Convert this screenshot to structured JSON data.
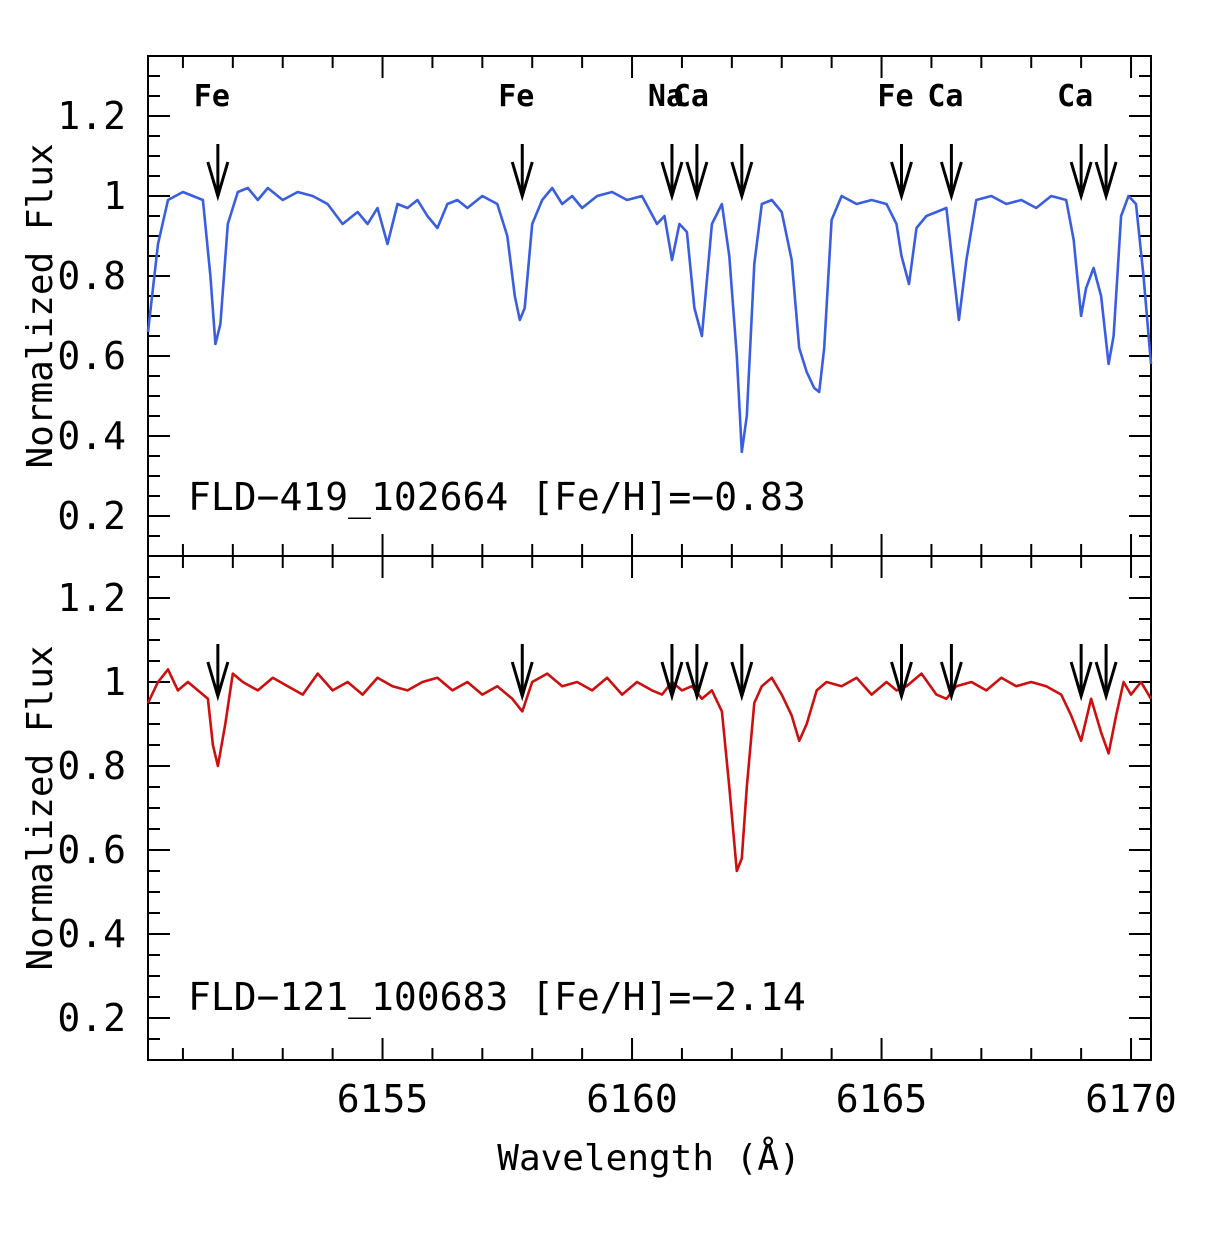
{
  "chart_data": {
    "type": "line",
    "x_axis": {
      "label": "Wavelength (Å)",
      "range": [
        6150.3,
        6170.4
      ],
      "ticks": [
        6155,
        6160,
        6165,
        6170
      ],
      "tick_labels": [
        "6155",
        "6160",
        "6165",
        "6170"
      ]
    },
    "panels": [
      {
        "id": "top",
        "title": "FLD−419_102664 [Fe/H]=−0.83",
        "ylabel": "Normalized Flux",
        "ylim": [
          0.1,
          1.35
        ],
        "yticks": [
          0.2,
          0.4,
          0.6,
          0.8,
          1.0,
          1.2
        ],
        "ytick_labels": [
          "0.2",
          "0.4",
          "0.6",
          "0.8",
          "1",
          "1.2"
        ],
        "series": {
          "name": "FLD-419_102664",
          "color": "#3a5ee0",
          "x": [
            6150.3,
            6150.5,
            6150.7,
            6151.0,
            6151.2,
            6151.4,
            6151.55,
            6151.65,
            6151.75,
            6151.9,
            6152.1,
            6152.3,
            6152.5,
            6152.7,
            6153.0,
            6153.3,
            6153.6,
            6153.9,
            6154.2,
            6154.5,
            6154.7,
            6154.9,
            6155.1,
            6155.3,
            6155.5,
            6155.7,
            6155.9,
            6156.1,
            6156.3,
            6156.5,
            6156.7,
            6157.0,
            6157.3,
            6157.5,
            6157.65,
            6157.75,
            6157.85,
            6158.0,
            6158.2,
            6158.4,
            6158.6,
            6158.8,
            6159.0,
            6159.3,
            6159.6,
            6159.9,
            6160.2,
            6160.5,
            6160.65,
            6160.8,
            6160.95,
            6161.1,
            6161.25,
            6161.4,
            6161.6,
            6161.8,
            6161.95,
            6162.1,
            6162.2,
            6162.3,
            6162.45,
            6162.6,
            6162.8,
            6163.0,
            6163.2,
            6163.35,
            6163.5,
            6163.65,
            6163.75,
            6163.85,
            6164.0,
            6164.2,
            6164.5,
            6164.8,
            6165.1,
            6165.3,
            6165.4,
            6165.55,
            6165.7,
            6165.9,
            6166.1,
            6166.3,
            6166.45,
            6166.55,
            6166.7,
            6166.9,
            6167.2,
            6167.5,
            6167.8,
            6168.1,
            6168.4,
            6168.7,
            6168.85,
            6169.0,
            6169.1,
            6169.25,
            6169.4,
            6169.55,
            6169.65,
            6169.8,
            6169.95,
            6170.1,
            6170.25,
            6170.4
          ],
          "y": [
            0.66,
            0.88,
            0.99,
            1.01,
            1.0,
            0.99,
            0.8,
            0.63,
            0.68,
            0.93,
            1.01,
            1.02,
            0.99,
            1.02,
            0.99,
            1.01,
            1.0,
            0.98,
            0.93,
            0.96,
            0.93,
            0.97,
            0.88,
            0.98,
            0.97,
            0.99,
            0.95,
            0.92,
            0.98,
            0.99,
            0.97,
            1.0,
            0.98,
            0.9,
            0.75,
            0.69,
            0.72,
            0.93,
            0.99,
            1.02,
            0.98,
            1.0,
            0.97,
            1.0,
            1.01,
            0.99,
            1.0,
            0.93,
            0.95,
            0.84,
            0.93,
            0.91,
            0.72,
            0.65,
            0.93,
            0.98,
            0.85,
            0.6,
            0.36,
            0.45,
            0.83,
            0.98,
            0.99,
            0.96,
            0.84,
            0.62,
            0.56,
            0.52,
            0.51,
            0.62,
            0.94,
            1.0,
            0.98,
            0.99,
            0.98,
            0.93,
            0.85,
            0.78,
            0.92,
            0.95,
            0.96,
            0.97,
            0.8,
            0.69,
            0.84,
            0.99,
            1.0,
            0.98,
            0.99,
            0.97,
            1.0,
            0.99,
            0.89,
            0.7,
            0.77,
            0.82,
            0.75,
            0.58,
            0.65,
            0.95,
            1.0,
            0.98,
            0.8,
            0.58
          ]
        },
        "arrows": [
          {
            "x": 6151.7,
            "label": "Fe"
          },
          {
            "x": 6157.8,
            "label": "Fe"
          },
          {
            "x": 6160.8,
            "label": "Na"
          },
          {
            "x": 6161.3,
            "label": "Ca"
          },
          {
            "x": 6162.2,
            "label": ""
          },
          {
            "x": 6165.4,
            "label": "Fe"
          },
          {
            "x": 6166.4,
            "label": "Ca"
          },
          {
            "x": 6169.0,
            "label": "Ca"
          },
          {
            "x": 6169.5,
            "label": ""
          }
        ]
      },
      {
        "id": "bottom",
        "title": "FLD−121_100683 [Fe/H]=−2.14",
        "ylabel": "Normalized Flux",
        "ylim": [
          0.1,
          1.3
        ],
        "yticks": [
          0.2,
          0.4,
          0.6,
          0.8,
          1.0,
          1.2
        ],
        "ytick_labels": [
          "0.2",
          "0.4",
          "0.6",
          "0.8",
          "1",
          "1.2"
        ],
        "series": {
          "name": "FLD-121_100683",
          "color": "#cc1010",
          "x": [
            6150.3,
            6150.5,
            6150.7,
            6150.9,
            6151.1,
            6151.3,
            6151.5,
            6151.6,
            6151.7,
            6151.85,
            6152.0,
            6152.2,
            6152.5,
            6152.8,
            6153.1,
            6153.4,
            6153.7,
            6154.0,
            6154.3,
            6154.6,
            6154.9,
            6155.2,
            6155.5,
            6155.8,
            6156.1,
            6156.4,
            6156.7,
            6157.0,
            6157.3,
            6157.6,
            6157.8,
            6158.0,
            6158.3,
            6158.6,
            6158.9,
            6159.2,
            6159.5,
            6159.8,
            6160.1,
            6160.4,
            6160.6,
            6160.8,
            6161.0,
            6161.2,
            6161.4,
            6161.6,
            6161.8,
            6161.95,
            6162.1,
            6162.2,
            6162.3,
            6162.45,
            6162.6,
            6162.8,
            6163.0,
            6163.2,
            6163.35,
            6163.5,
            6163.7,
            6163.9,
            6164.2,
            6164.5,
            6164.8,
            6165.1,
            6165.3,
            6165.5,
            6165.8,
            6166.1,
            6166.3,
            6166.5,
            6166.8,
            6167.1,
            6167.4,
            6167.7,
            6168.0,
            6168.3,
            6168.6,
            6168.8,
            6169.0,
            6169.2,
            6169.4,
            6169.55,
            6169.7,
            6169.85,
            6170.0,
            6170.2,
            6170.4
          ],
          "y": [
            0.95,
            1.0,
            1.03,
            0.98,
            1.0,
            0.98,
            0.96,
            0.85,
            0.8,
            0.9,
            1.02,
            1.0,
            0.98,
            1.01,
            0.99,
            0.97,
            1.02,
            0.98,
            1.0,
            0.97,
            1.01,
            0.99,
            0.98,
            1.0,
            1.01,
            0.98,
            1.0,
            0.97,
            0.99,
            0.96,
            0.93,
            1.0,
            1.02,
            0.99,
            1.0,
            0.98,
            1.01,
            0.97,
            1.0,
            0.98,
            0.97,
            1.0,
            0.98,
            0.99,
            0.96,
            0.98,
            0.93,
            0.75,
            0.55,
            0.58,
            0.75,
            0.95,
            0.99,
            1.01,
            0.97,
            0.92,
            0.86,
            0.9,
            0.98,
            1.0,
            0.99,
            1.01,
            0.97,
            1.0,
            0.98,
            0.99,
            1.02,
            0.97,
            0.96,
            0.99,
            1.0,
            0.98,
            1.01,
            0.99,
            1.0,
            0.99,
            0.97,
            0.92,
            0.86,
            0.96,
            0.88,
            0.83,
            0.92,
            1.0,
            0.97,
            1.0,
            0.96
          ]
        },
        "arrows": [
          {
            "x": 6151.7,
            "label": ""
          },
          {
            "x": 6157.8,
            "label": ""
          },
          {
            "x": 6160.8,
            "label": ""
          },
          {
            "x": 6161.3,
            "label": ""
          },
          {
            "x": 6162.2,
            "label": ""
          },
          {
            "x": 6165.4,
            "label": ""
          },
          {
            "x": 6166.4,
            "label": ""
          },
          {
            "x": 6169.0,
            "label": ""
          },
          {
            "x": 6169.5,
            "label": ""
          }
        ]
      }
    ]
  }
}
